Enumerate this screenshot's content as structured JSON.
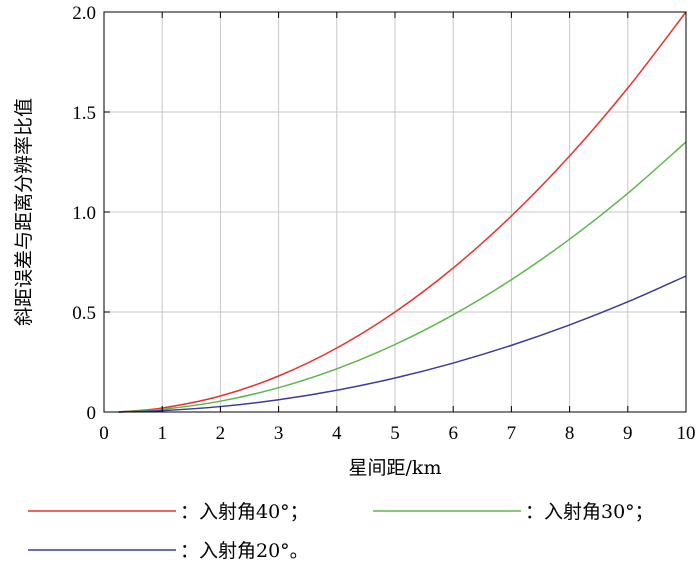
{
  "chart_data": {
    "type": "line",
    "xlabel": "星间距/km",
    "ylabel": "斜距误差与距离分辨率比值",
    "xlim": [
      0,
      10
    ],
    "ylim": [
      0,
      2.0
    ],
    "grid": true,
    "x_ticks": [
      0,
      1,
      2,
      3,
      4,
      5,
      6,
      7,
      8,
      9,
      10
    ],
    "x_tick_labels": [
      "0",
      "1",
      "2",
      "3",
      "4",
      "5",
      "6",
      "7",
      "8",
      "9",
      "10"
    ],
    "y_ticks": [
      0,
      0.5,
      1.0,
      1.5,
      2.0
    ],
    "y_tick_labels": [
      "0",
      "0.5",
      "1.0",
      "1.5",
      "2.0"
    ],
    "x": [
      0.25,
      1,
      2,
      3,
      4,
      5,
      6,
      7,
      8,
      9,
      10
    ],
    "series": [
      {
        "name": "入射角40°",
        "legend_label": "：入射角40°；",
        "color": "#e8322c",
        "values": [
          0.0,
          0.02,
          0.08,
          0.18,
          0.32,
          0.5,
          0.72,
          0.98,
          1.28,
          1.62,
          2.0
        ]
      },
      {
        "name": "入射角30°",
        "legend_label": "：入射角30°；",
        "color": "#5cb84a",
        "values": [
          0.0,
          0.0135,
          0.054,
          0.1215,
          0.216,
          0.3375,
          0.486,
          0.6615,
          0.864,
          1.0935,
          1.35
        ]
      },
      {
        "name": "入射角20°",
        "legend_label": "：入射角20°。",
        "color": "#3b3b9a",
        "values": [
          0.0,
          0.0068,
          0.0272,
          0.0612,
          0.1088,
          0.17,
          0.2448,
          0.3332,
          0.4352,
          0.5508,
          0.68
        ]
      }
    ],
    "legend_placement": "bottom"
  }
}
